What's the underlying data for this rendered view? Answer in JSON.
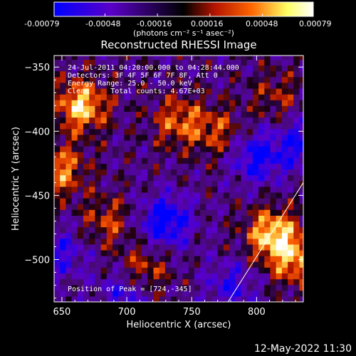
{
  "colorbar": {
    "tick_labels": [
      "-0.00079",
      "-0.00048",
      "-0.00016",
      "0.00016",
      "0.00048",
      "0.00079"
    ],
    "range": [
      -0.00079,
      0.00079
    ],
    "units_label": "(photons cm⁻² s⁻¹ asec⁻²)",
    "colors": [
      "#0000ff",
      "#5a00c8",
      "#000000",
      "#b41400",
      "#ff6400",
      "#ffff64",
      "#ffffff"
    ]
  },
  "chart_data": {
    "type": "heatmap",
    "title": "Reconstructed RHESSI Image",
    "xlabel": "Heliocentric X (arcsec)",
    "ylabel": "Heliocentric Y (arcsec)",
    "xlim": [
      644,
      836
    ],
    "ylim": [
      -533,
      -341
    ],
    "x_ticks": [
      650,
      700,
      750,
      800
    ],
    "y_ticks": [
      -500,
      -450,
      -400,
      -350
    ],
    "x_tick_labels": [
      "650",
      "700",
      "750",
      "800"
    ],
    "y_tick_labels": [
      "−500",
      "−450",
      "−400",
      "−350"
    ],
    "value_range": [
      -0.00079,
      0.00079
    ],
    "hot_spots": [
      {
        "x": 665,
        "y": -380,
        "value": 0.00079
      },
      {
        "x": 648,
        "y": -430,
        "value": 0.0006
      },
      {
        "x": 740,
        "y": -392,
        "value": 0.0005
      },
      {
        "x": 812,
        "y": -480,
        "value": 0.00079
      },
      {
        "x": 830,
        "y": -500,
        "value": 0.0006
      },
      {
        "x": 685,
        "y": -470,
        "value": 0.0004
      },
      {
        "x": 712,
        "y": -510,
        "value": 0.0005
      },
      {
        "x": 770,
        "y": -400,
        "value": 0.0004
      },
      {
        "x": 815,
        "y": -372,
        "value": 0.0003
      }
    ],
    "cold_spots": [
      {
        "x": 800,
        "y": -420,
        "value": -0.0006
      },
      {
        "x": 730,
        "y": -470,
        "value": -0.0007
      },
      {
        "x": 650,
        "y": -495,
        "value": -0.0004
      },
      {
        "x": 700,
        "y": -525,
        "value": -0.0005
      },
      {
        "x": 780,
        "y": -520,
        "value": -0.0004
      },
      {
        "x": 835,
        "y": -410,
        "value": -0.0005
      }
    ],
    "limb_line": [
      [
        778,
        -533
      ],
      [
        836,
        -440
      ]
    ],
    "annotations": [
      "24-Jul-2011 04:20:00.000 to 04:28:44.000",
      "Detectors: 3F 4F 5F 6F 7F 8F, Att 0",
      "Energy Range: 25.0 - 50.0 keV",
      "Clean     Total counts: 4.67E+03"
    ],
    "peak_label": "Position of Peak = [724,-345]"
  },
  "footer": {
    "timestamp": "12-May-2022 11:30"
  }
}
